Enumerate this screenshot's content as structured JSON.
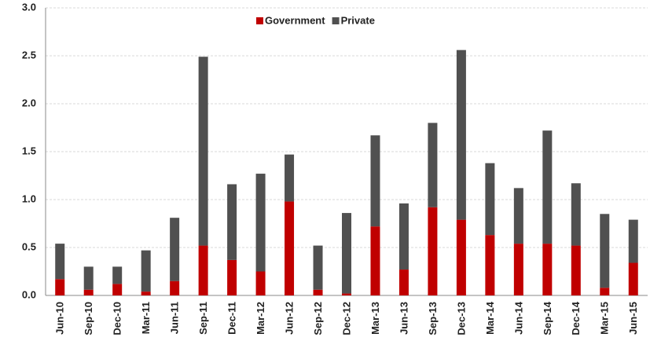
{
  "chart_data": {
    "type": "stacked_bar",
    "categories": [
      "Jun-10",
      "Sep-10",
      "Dec-10",
      "Mar-11",
      "Jun-11",
      "Sep-11",
      "Dec-11",
      "Mar-12",
      "Jun-12",
      "Sep-12",
      "Dec-12",
      "Mar-13",
      "Jun-13",
      "Sep-13",
      "Dec-13",
      "Mar-14",
      "Jun-14",
      "Sep-14",
      "Dec-14",
      "Mar-15",
      "Jun-15"
    ],
    "series": [
      {
        "name": "Government",
        "color": "#c00000",
        "values": [
          0.17,
          0.06,
          0.12,
          0.04,
          0.15,
          0.52,
          0.37,
          0.25,
          0.98,
          0.06,
          0.02,
          0.72,
          0.27,
          0.92,
          0.79,
          0.63,
          0.54,
          0.54,
          0.52,
          0.08,
          0.34
        ]
      },
      {
        "name": "Private",
        "color": "#505050",
        "values": [
          0.37,
          0.24,
          0.18,
          0.43,
          0.66,
          1.97,
          0.79,
          1.02,
          0.49,
          0.46,
          0.84,
          0.95,
          0.69,
          0.88,
          1.77,
          0.75,
          0.58,
          1.18,
          0.65,
          0.77,
          0.45
        ]
      }
    ],
    "ylim": [
      0,
      3
    ],
    "yticks": [
      {
        "value": 0,
        "label": "0.0"
      },
      0.5,
      {
        "value": 1,
        "label": "1.0"
      },
      1.5,
      {
        "value": 2,
        "label": "2.0"
      },
      2.5,
      {
        "value": 3,
        "label": "3.0"
      }
    ],
    "grid": true,
    "legend": "top"
  }
}
